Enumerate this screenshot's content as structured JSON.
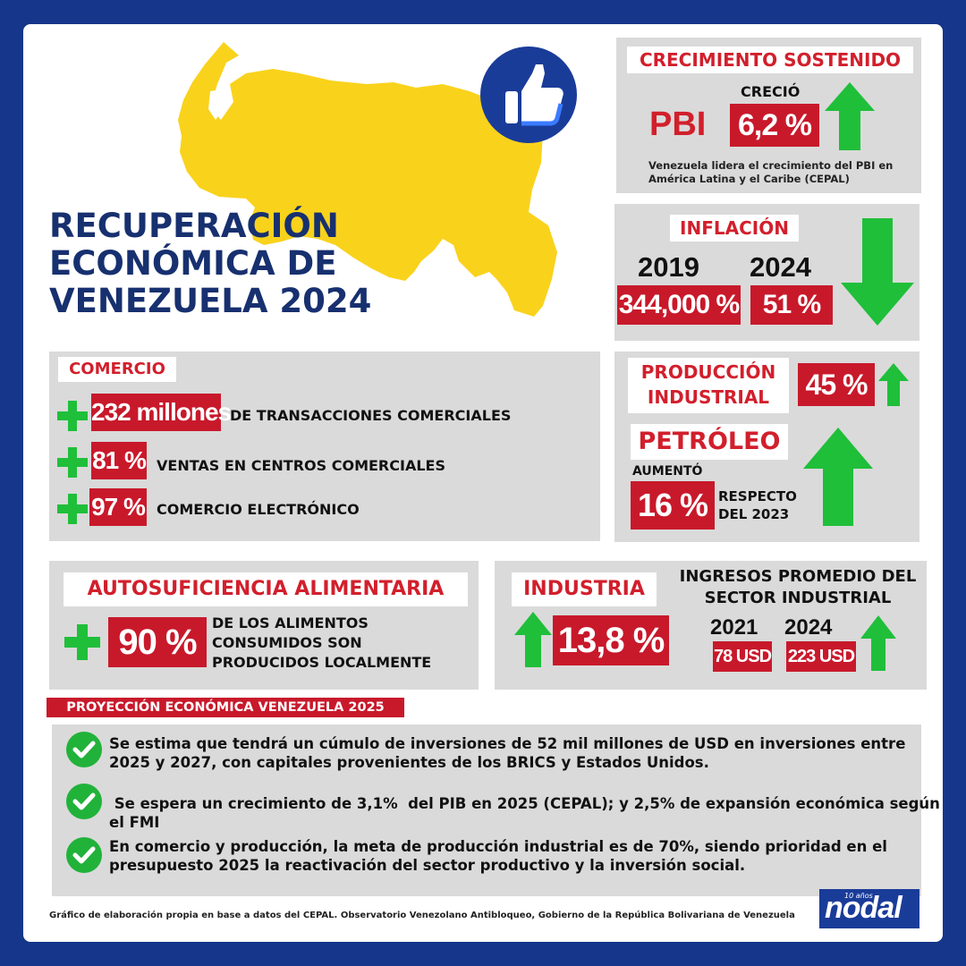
{
  "title": {
    "line1": "RECUPERACIÓN",
    "line2": "ECONÓMICA DE",
    "line3": "VENEZUELA 2024"
  },
  "crecimiento": {
    "heading": "CRECIMIENTO SOSTENIDO",
    "crecio": "CRECIÓ",
    "pbi": "PBI",
    "value": "6,2 %",
    "note_line1": "Venezuela lidera el crecimiento del PBI en",
    "note_line2": "América Latina y el Caribe (CEPAL)"
  },
  "inflacion": {
    "heading": "INFLACIÓN",
    "year1": "2019",
    "value1": "344,000 %",
    "year2": "2024",
    "value2": "51 %"
  },
  "comercio": {
    "heading": "COMERCIO",
    "rows": [
      {
        "value": "232 millones",
        "label": "DE TRANSACCIONES COMERCIALES"
      },
      {
        "value": "81 %",
        "label": "VENTAS EN CENTROS COMERCIALES"
      },
      {
        "value": "97 %",
        "label": "COMERCIO ELECTRÓNICO"
      }
    ]
  },
  "produccion": {
    "heading_line1": "PRODUCCIÓN",
    "heading_line2": "INDUSTRIAL",
    "value": "45 %"
  },
  "petroleo": {
    "heading": "PETRÓLEO",
    "aumento": "AUMENTÓ",
    "value": "16 %",
    "respecto_line1": "RESPECTO",
    "respecto_line2": "DEL 2023"
  },
  "alimentaria": {
    "heading": "AUTOSUFICIENCIA ALIMENTARIA",
    "value": "90 %",
    "text_line1": "DE LOS ALIMENTOS",
    "text_line2": "CONSUMIDOS  SON",
    "text_line3": "PRODUCIDOS LOCALMENTE"
  },
  "industria": {
    "heading": "INDUSTRIA",
    "value": "13,8 %",
    "ingresos_line1": "INGRESOS PROMEDIO DEL",
    "ingresos_line2": "SECTOR INDUSTRIAL",
    "year1": "2021",
    "value1": "78 USD",
    "year2": "2024",
    "value2": "223 USD"
  },
  "proyeccion": {
    "heading": "PROYECCIÓN ECONÓMICA VENEZUELA 2025",
    "items": [
      {
        "line1": "Se estima que tendrá un cúmulo de inversiones de 52 mil millones de USD en inversiones entre",
        "line2": "2025 y 2027, con capitales provenientes de los BRICS y Estados Unidos."
      },
      {
        "line1": " Se espera un crecimiento de 3,1%  del PIB en 2025 (CEPAL); y 2,5% de expansión económica según",
        "line2": "el FMI"
      },
      {
        "line1": "En comercio y producción, la meta de producción industrial es de 70%, siendo prioridad en el",
        "line2": "presupuesto 2025 la reactivación del sector productivo y la inversión social."
      }
    ]
  },
  "footer": {
    "source": "Gráfico de elaboración propia en base a datos del CEPAL. Observatorio Venezolano Antibloqueo, Gobierno de la República Bolivariana de Venezuela",
    "logo_small": "10 años",
    "logo": "nodal"
  },
  "colors": {
    "red": "#c8192b",
    "green": "#1fbf3a",
    "navy": "#17306f",
    "frame": "#15368a",
    "yellow": "#f9d21c",
    "gray": "#dadada"
  },
  "icons": [
    "venezuela-map-icon",
    "thumbs-up-icon",
    "arrow-up-icon",
    "arrow-down-icon",
    "plus-icon",
    "check-icon"
  ]
}
